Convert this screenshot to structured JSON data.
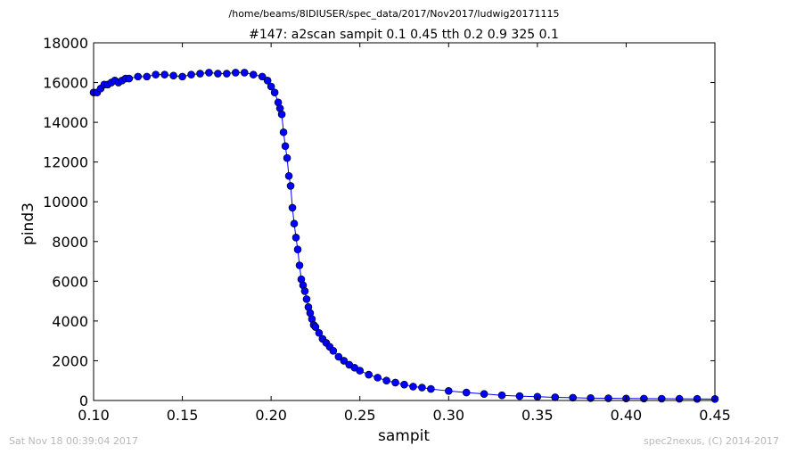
{
  "header": {
    "path": "/home/beams/8IDIUSER/spec_data/2017/Nov2017/ludwig20171115"
  },
  "footer": {
    "timestamp": "Sat Nov 18 00:39:04 2017",
    "credit": "spec2nexus, (C) 2014-2017"
  },
  "colors": {
    "series": "#0000ff",
    "marker_edge": "#000000",
    "axes": "#000000"
  },
  "chart_data": {
    "type": "line",
    "title": "#147: a2scan  sampit 0.1 0.45  tth 0.2 0.9  325 0.1",
    "xlabel": "sampit",
    "ylabel": "pind3",
    "xlim": [
      0.1,
      0.45
    ],
    "ylim": [
      0,
      18000
    ],
    "xticks": [
      "0.10",
      "0.15",
      "0.20",
      "0.25",
      "0.30",
      "0.35",
      "0.40",
      "0.45"
    ],
    "yticks": [
      "0",
      "2000",
      "4000",
      "6000",
      "8000",
      "10000",
      "12000",
      "14000",
      "16000",
      "18000"
    ],
    "grid": false,
    "legend": "none",
    "marker": "circle",
    "series": [
      {
        "x": [
          0.1,
          0.102,
          0.104,
          0.106,
          0.108,
          0.11,
          0.112,
          0.114,
          0.116,
          0.118,
          0.12,
          0.125,
          0.13,
          0.135,
          0.14,
          0.145,
          0.15,
          0.155,
          0.16,
          0.165,
          0.17,
          0.175,
          0.18,
          0.185,
          0.19,
          0.195,
          0.198,
          0.2,
          0.202,
          0.204,
          0.205,
          0.206,
          0.207,
          0.208,
          0.209,
          0.21,
          0.211,
          0.212,
          0.213,
          0.214,
          0.215,
          0.216,
          0.217,
          0.218,
          0.219,
          0.22,
          0.221,
          0.222,
          0.223,
          0.224,
          0.225,
          0.227,
          0.229,
          0.231,
          0.233,
          0.235,
          0.238,
          0.241,
          0.244,
          0.247,
          0.25,
          0.255,
          0.26,
          0.265,
          0.27,
          0.275,
          0.28,
          0.285,
          0.29,
          0.3,
          0.31,
          0.32,
          0.33,
          0.34,
          0.35,
          0.36,
          0.37,
          0.38,
          0.39,
          0.4,
          0.41,
          0.42,
          0.43,
          0.44,
          0.45
        ],
        "y": [
          15500,
          15500,
          15700,
          15900,
          15900,
          16000,
          16100,
          16000,
          16100,
          16200,
          16200,
          16300,
          16300,
          16400,
          16400,
          16350,
          16300,
          16400,
          16450,
          16500,
          16450,
          16450,
          16500,
          16500,
          16400,
          16300,
          16100,
          15800,
          15500,
          15000,
          14700,
          14400,
          13500,
          12800,
          12200,
          11300,
          10800,
          9700,
          8900,
          8200,
          7600,
          6800,
          6100,
          5800,
          5500,
          5100,
          4700,
          4400,
          4100,
          3800,
          3700,
          3400,
          3100,
          2900,
          2700,
          2500,
          2200,
          2000,
          1800,
          1650,
          1500,
          1300,
          1150,
          1000,
          900,
          800,
          700,
          650,
          580,
          480,
          400,
          330,
          260,
          220,
          190,
          160,
          140,
          120,
          110,
          100,
          95,
          90,
          85,
          80,
          75
        ]
      }
    ]
  }
}
